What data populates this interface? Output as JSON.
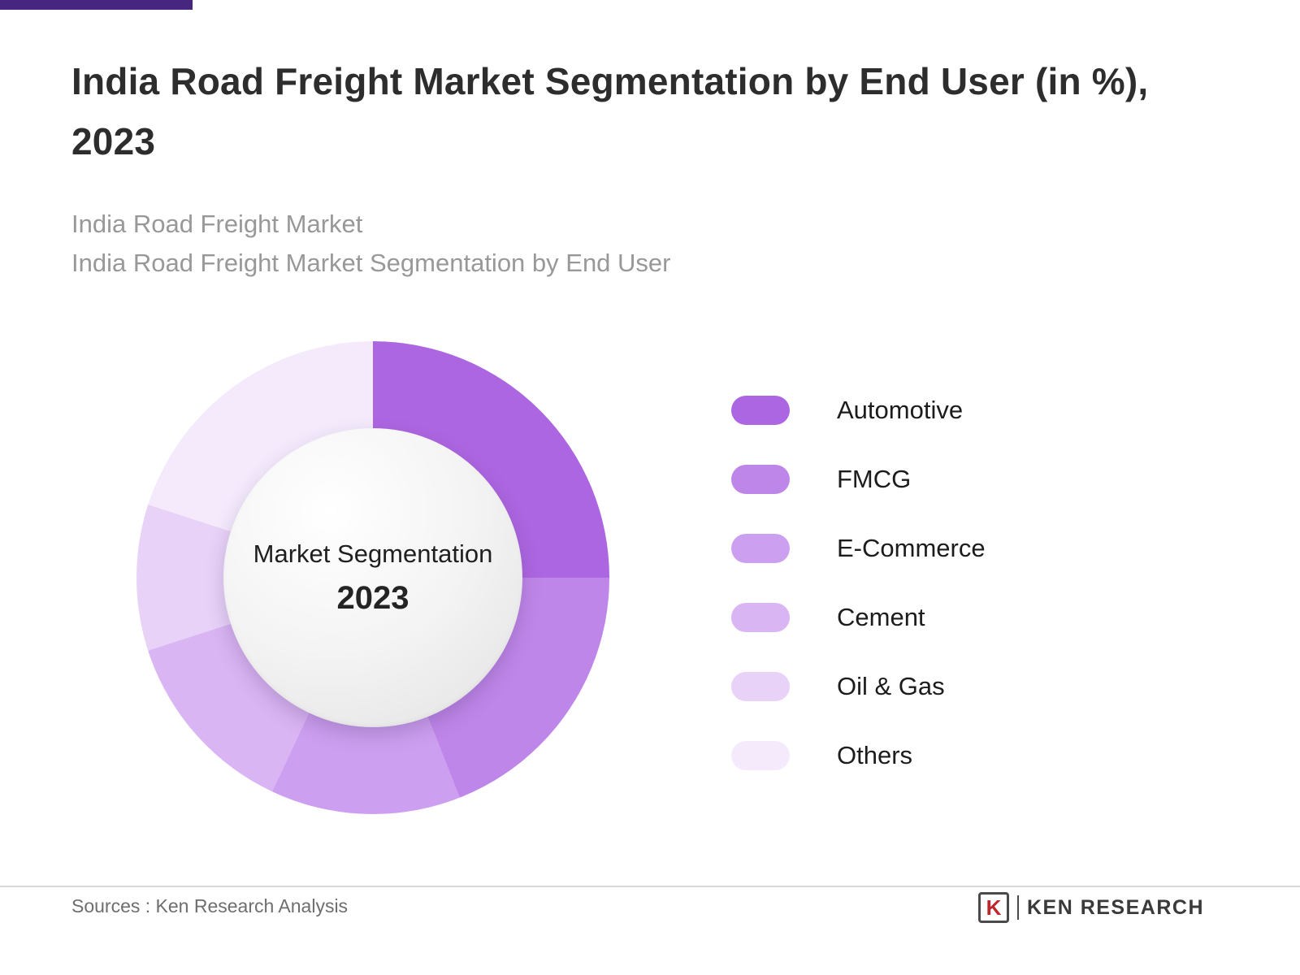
{
  "accent": {
    "color": "#46267e"
  },
  "header": {
    "title": "India Road Freight Market Segmentation by End User (in %), 2023",
    "subtitle_line1": "India Road Freight Market",
    "subtitle_line2": "India Road Freight Market Segmentation by End User"
  },
  "chart_data": {
    "type": "pie",
    "subtype": "donut",
    "title": "India Road Freight Market Segmentation by End User (in %), 2023",
    "center_label": "Market Segmentation",
    "center_year": "2023",
    "legend_position": "right",
    "start_angle_deg": 0,
    "direction": "clockwise",
    "categories": [
      "Automotive",
      "FMCG",
      "E-Commerce",
      "Cement",
      "Oil & Gas",
      "Others"
    ],
    "values": [
      25,
      19,
      13,
      13,
      10,
      20
    ],
    "colors": [
      "#ad66e1",
      "#bf86e9",
      "#cd9ff0",
      "#dab5f3",
      "#e8d2f8",
      "#f4eafc"
    ]
  },
  "footer": {
    "sources": "Sources : Ken Research Analysis",
    "brand_initial": "K",
    "brand": "KEN RESEARCH"
  }
}
